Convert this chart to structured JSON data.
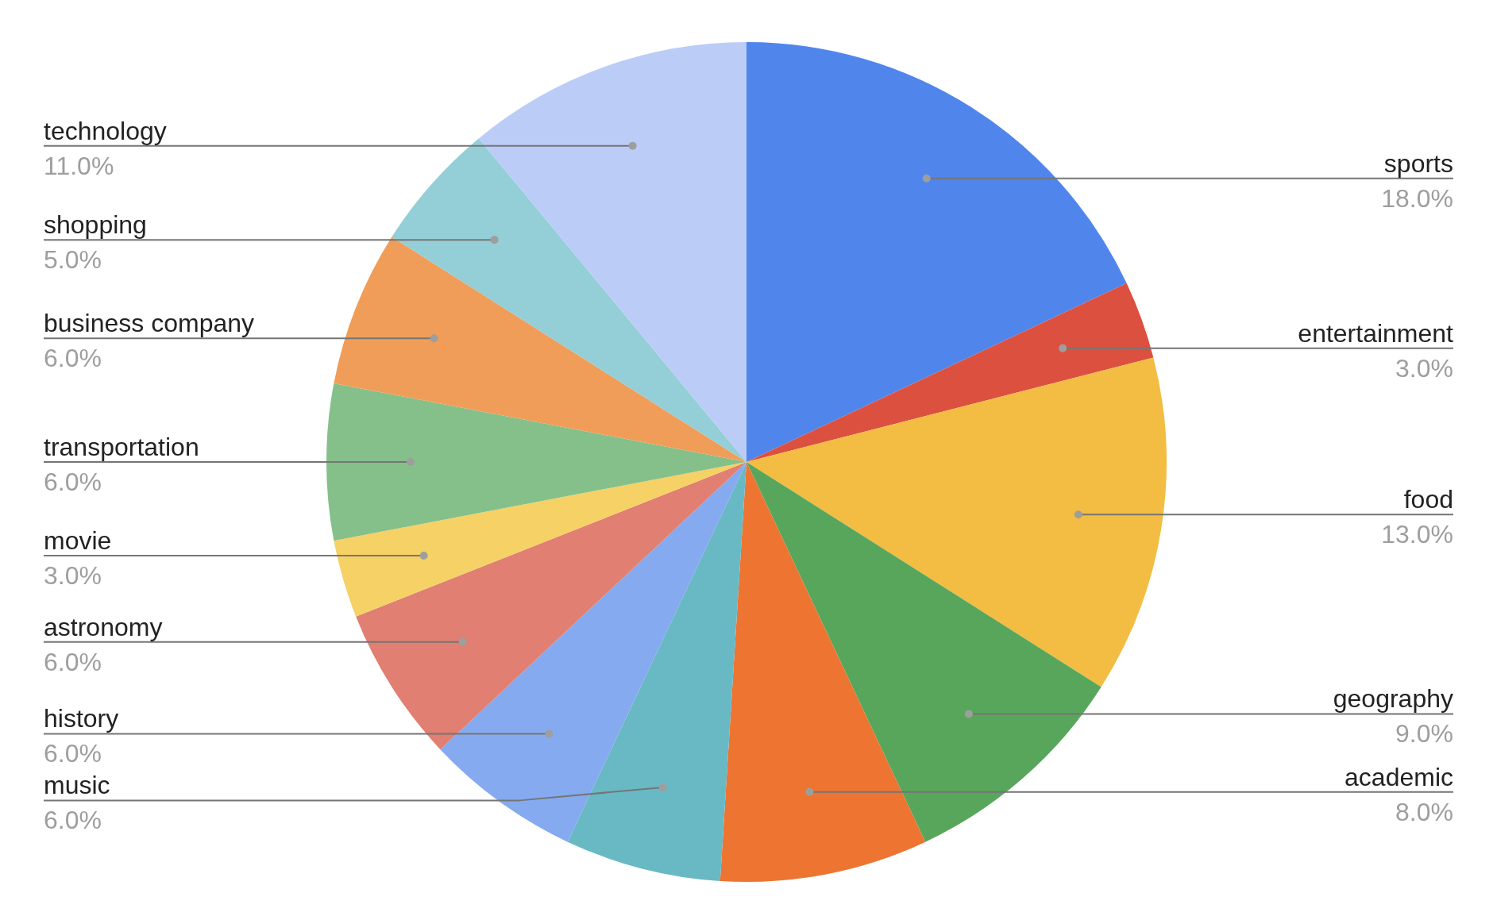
{
  "chart_data": {
    "type": "pie",
    "categories": [
      "sports",
      "entertainment",
      "food",
      "geography",
      "academic",
      "music",
      "history",
      "astronomy",
      "movie",
      "transportation",
      "business company",
      "shopping",
      "technology"
    ],
    "values": [
      18,
      3,
      13,
      9,
      8,
      6,
      6,
      6,
      3,
      6,
      6,
      5,
      11
    ],
    "colors": [
      "#5086ec",
      "#dc5040",
      "#f2bd42",
      "#58a65c",
      "#ed7431",
      "#68b9c4",
      "#85aaef",
      "#e07f72",
      "#f5d166",
      "#85c08a",
      "#f09d59",
      "#94ced6",
      "#bbcdf6"
    ],
    "value_labels": [
      "18.0%",
      "3.0%",
      "13.0%",
      "9.0%",
      "8.0%",
      "6.0%",
      "6.0%",
      "6.0%",
      "3.0%",
      "6.0%",
      "6.0%",
      "5.0%",
      "11.0%"
    ]
  }
}
